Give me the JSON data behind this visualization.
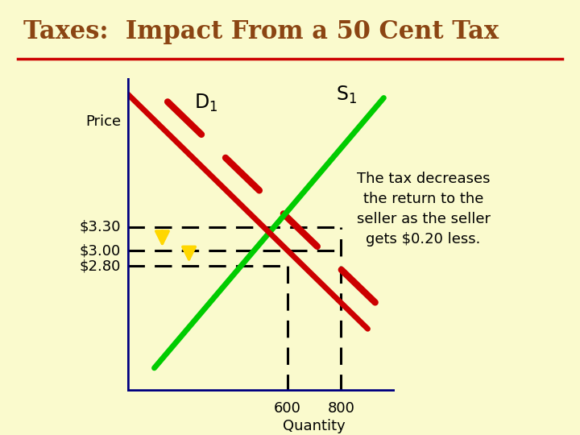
{
  "title": "Taxes:  Impact From a 50 Cent Tax",
  "title_color": "#8B4513",
  "title_fontsize": 22,
  "bg_color": "#FAFACD",
  "separator_color": "#CC0000",
  "xlabel": "Quantity",
  "ylabel": "Price",
  "price_labels": [
    "$3.30",
    "$3.00",
    "$2.80"
  ],
  "price_values": [
    3.3,
    3.0,
    2.8
  ],
  "qty_labels": [
    "600",
    "800"
  ],
  "qty_values": [
    600,
    800
  ],
  "xlim": [
    0,
    1000
  ],
  "ylim": [
    1.2,
    5.2
  ],
  "annotation_text": "The tax decreases\nthe return to the\nseller as the seller\ngets $0.20 less.",
  "annotation_fontsize": 13,
  "D1_label": "D",
  "D1_sub": "1",
  "S1_label": "S",
  "S1_sub": "1",
  "axis_color": "#000080",
  "green_line_color": "#00CC00",
  "red_solid_color": "#CC0000",
  "red_dash_color": "#CC0000",
  "dash_color": "#000000",
  "yellow_arrow_color": "#FFD700"
}
